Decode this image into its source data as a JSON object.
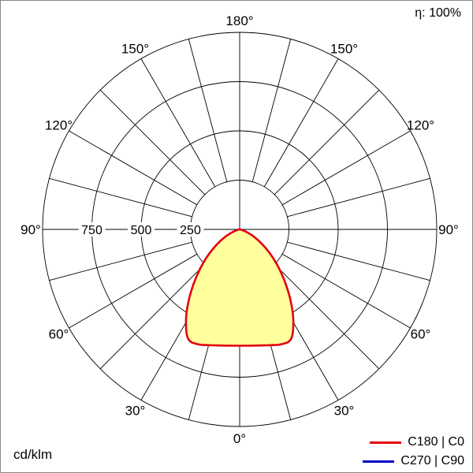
{
  "meta": {
    "efficiency": "η: 100%",
    "unit": "cd/klm"
  },
  "legend": [
    {
      "label": "C180 | C0",
      "color": "#e3000f"
    },
    {
      "label": "C270 | C90",
      "color": "#0000cc"
    }
  ],
  "chart_data": {
    "type": "polar",
    "description": "Luminous intensity distribution curve",
    "unit": "cd/klm",
    "efficiency_label": "η: 100%",
    "angle_labels_deg": [
      0,
      30,
      60,
      90,
      120,
      150,
      180
    ],
    "grid_angle_step_deg": 15,
    "radial_ticks": [
      250,
      500,
      750
    ],
    "grid_circles": [
      250,
      500,
      750,
      1000
    ],
    "r_max": 1000,
    "fill_color": "#ffff9e",
    "symmetric": true,
    "angles_deg": [
      0,
      5,
      10,
      15,
      20,
      25,
      30,
      35,
      40,
      45,
      50,
      55,
      60,
      65,
      70,
      75,
      80,
      85,
      90
    ],
    "series": [
      {
        "name": "C180 | C0",
        "color": "#e3000f",
        "values": [
          590,
          592,
          598,
          608,
          620,
          615,
          545,
          455,
          365,
          285,
          215,
          155,
          105,
          65,
          32,
          12,
          3,
          0,
          0
        ]
      },
      {
        "name": "C270 | C90",
        "color": "#0000cc",
        "values": [
          588,
          590,
          596,
          606,
          617,
          611,
          542,
          452,
          362,
          282,
          212,
          152,
          102,
          62,
          30,
          11,
          2,
          0,
          0
        ]
      }
    ]
  }
}
